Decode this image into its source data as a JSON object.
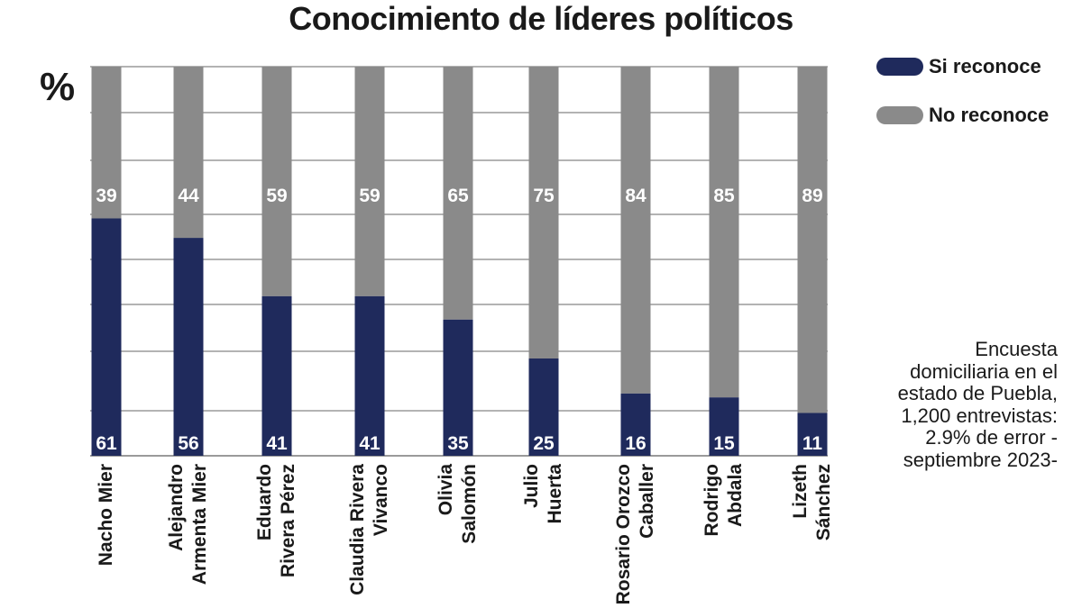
{
  "chart_data": {
    "type": "bar",
    "stacked": true,
    "title": "Conocimiento de líderes políticos",
    "ylabel": "%",
    "xlabel": "",
    "ylim": [
      0,
      100
    ],
    "categories": [
      "Nacho Mier",
      "Alejandro Armenta Mier",
      "Eduardo Rivera Pérez",
      "Claudia Rivera Vivanco",
      "Olivia Salomón",
      "Julio Huerta",
      "Rosario Orozco Caballer",
      "Rodrigo Abdala",
      "Lizeth Sánchez"
    ],
    "category_lines": [
      [
        "Nacho Mier"
      ],
      [
        "Alejandro",
        "Armenta Mier"
      ],
      [
        "Eduardo",
        "Rivera Pérez"
      ],
      [
        "Claudia Rivera",
        "Vivanco"
      ],
      [
        "Olivia",
        "Salomón"
      ],
      [
        "Julio",
        "Huerta"
      ],
      [
        "Rosario Orozco",
        "Caballer"
      ],
      [
        "Rodrigo",
        "Abdala"
      ],
      [
        "Lizeth",
        "Sánchez"
      ]
    ],
    "series": [
      {
        "name": "Si reconoce",
        "color": "#1f2a5c",
        "values": [
          61,
          56,
          41,
          41,
          35,
          25,
          16,
          15,
          11
        ]
      },
      {
        "name": "No reconoce",
        "color": "#8a8a8a",
        "values": [
          39,
          44,
          59,
          59,
          65,
          75,
          84,
          85,
          89
        ]
      }
    ],
    "legend_position": "top-right",
    "grid": true
  },
  "note": "Encuesta domiciliaria en el estado de Puebla, 1,200 entrevistas: 2.9% de error -septiembre 2023-"
}
